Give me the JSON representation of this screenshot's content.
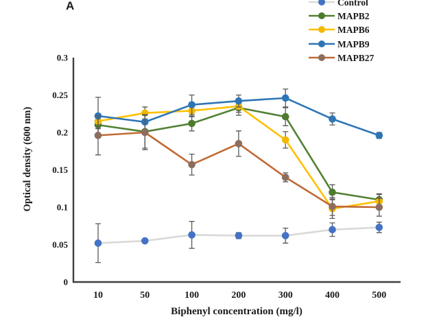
{
  "panel_label": "A",
  "colors": {
    "axis": "#3f3f3f",
    "error_bar": "#595959",
    "tick_text": "#1a1a1a",
    "background": "#ffffff"
  },
  "chart_data": {
    "type": "line",
    "title": "",
    "xlabel": "Biphenyl concentration (mg/l)",
    "ylabel": "Optical density (600 nm)",
    "categories": [
      "10",
      "50",
      "100",
      "200",
      "300",
      "400",
      "500"
    ],
    "ylim": [
      0,
      0.3
    ],
    "ytick_labels": [
      "0",
      "0.05",
      "0.1",
      "0.15",
      "0.2",
      "0.25",
      "0.3"
    ],
    "grid": false,
    "legend_position": "top-right",
    "error_bars": true,
    "series": [
      {
        "name": "Control",
        "line_color": "#D9D9D9",
        "marker_color": "#4472C4",
        "values": [
          0.052,
          0.055,
          0.063,
          0.062,
          0.062,
          0.07,
          0.073
        ],
        "errors": [
          0.026,
          0.003,
          0.018,
          0.004,
          0.01,
          0.009,
          0.007
        ]
      },
      {
        "name": "MAPB2",
        "line_color": "#538135",
        "marker_color": "#4E7A2E",
        "values": [
          0.21,
          0.201,
          0.212,
          0.233,
          0.221,
          0.12,
          0.11
        ],
        "errors": [
          0.012,
          0.022,
          0.01,
          0.01,
          0.012,
          0.01,
          0.008
        ]
      },
      {
        "name": "MAPB6",
        "line_color": "#FFC000",
        "marker_color": "#F3B800",
        "values": [
          0.215,
          0.226,
          0.229,
          0.235,
          0.19,
          0.098,
          0.108
        ],
        "errors": [
          0.01,
          0.008,
          0.008,
          0.008,
          0.011,
          0.013,
          0.009
        ]
      },
      {
        "name": "MAPB9",
        "line_color": "#2E75B6",
        "marker_color": "#2E75B6",
        "values": [
          0.222,
          0.214,
          0.237,
          0.242,
          0.246,
          0.218,
          0.196
        ],
        "errors": [
          0.025,
          0.01,
          0.013,
          0.008,
          0.012,
          0.008,
          0.004
        ]
      },
      {
        "name": "MAPB27",
        "line_color": "#C06A35",
        "marker_color": "#8C6D5E",
        "values": [
          0.196,
          0.2,
          0.157,
          0.185,
          0.14,
          0.101,
          0.1
        ],
        "errors": [
          0.026,
          0.023,
          0.014,
          0.017,
          0.006,
          0.012,
          0.012
        ]
      }
    ]
  }
}
